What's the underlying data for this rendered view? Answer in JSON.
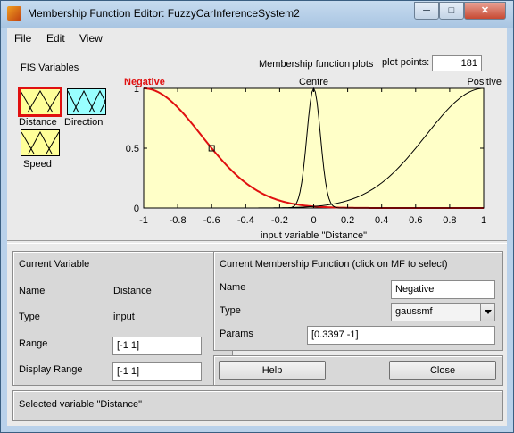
{
  "window": {
    "title": "Membership Function Editor: FuzzyCarInferenceSystem2",
    "controls": {
      "minimize": "─",
      "maximize": "□",
      "close": "✕"
    }
  },
  "menu": [
    "File",
    "Edit",
    "View"
  ],
  "fis_variables": {
    "label": "FIS Variables",
    "items": [
      {
        "name": "Distance",
        "kind": "input",
        "color": "#ffff99",
        "selected": true
      },
      {
        "name": "Direction",
        "kind": "input",
        "color": "#99ffff",
        "selected": false
      },
      {
        "name": "Speed",
        "kind": "output",
        "color": "#ffff99",
        "selected": false
      }
    ]
  },
  "plot": {
    "title": "Membership function plots",
    "plot_points_label": "plot points:",
    "plot_points": "181",
    "xlabel": "input variable \"Distance\""
  },
  "chart_data": {
    "type": "line",
    "title": "Membership function plots",
    "xlabel": "input variable \"Distance\"",
    "ylabel": "",
    "xlim": [
      -1,
      1
    ],
    "ylim": [
      0,
      1
    ],
    "x_ticks": [
      "-1",
      "-0.8",
      "-0.6",
      "-0.4",
      "-0.2",
      "0",
      "0.2",
      "0.4",
      "0.6",
      "0.8",
      "1"
    ],
    "y_ticks": [
      "0",
      "0.5",
      "1"
    ],
    "background": "#ffffc8",
    "series": [
      {
        "name": "Negative",
        "function": "gaussmf",
        "params": [
          0.3397,
          -1
        ],
        "color": "#e01010",
        "selected": true
      },
      {
        "name": "Centre",
        "function": "gaussmf",
        "params": [
          0.04,
          0
        ],
        "color": "#000000",
        "selected": false
      },
      {
        "name": "Positive",
        "function": "gaussmf",
        "params": [
          0.3397,
          1
        ],
        "color": "#000000",
        "selected": false
      }
    ],
    "marker": {
      "x": -0.6,
      "y": 0.5
    }
  },
  "current_variable": {
    "header": "Current Variable",
    "name_label": "Name",
    "name": "Distance",
    "type_label": "Type",
    "type": "input",
    "range_label": "Range",
    "range": "[-1 1]",
    "display_range_label": "Display Range",
    "display_range": "[-1 1]"
  },
  "current_mf": {
    "header": "Current Membership Function (click on MF to select)",
    "name_label": "Name",
    "name": "Negative",
    "type_label": "Type",
    "type": "gaussmf",
    "params_label": "Params",
    "params": "[0.3397 -1]"
  },
  "buttons": {
    "help": "Help",
    "close": "Close"
  },
  "status": "Selected variable \"Distance\""
}
